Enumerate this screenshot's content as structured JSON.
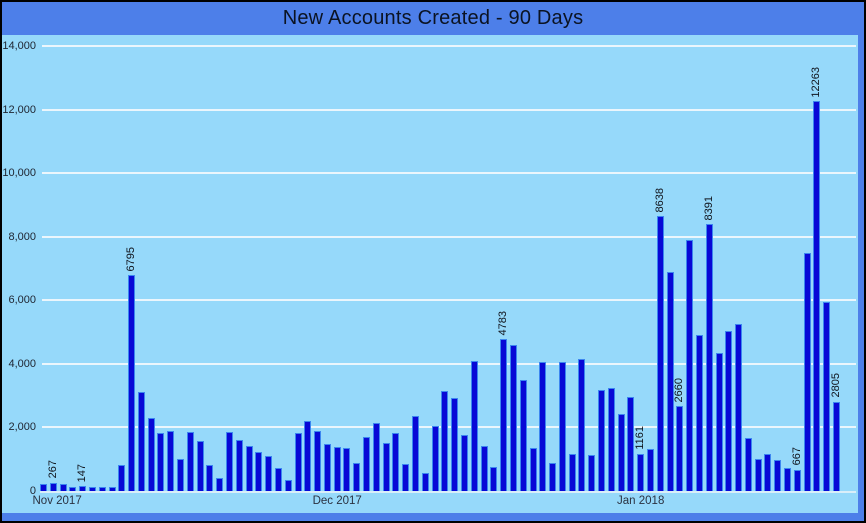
{
  "window": {
    "title": "New Accounts Created - 90 Days"
  },
  "colors": {
    "frame_blue": "#4D7FE9",
    "panel_blue": "#96D9FA",
    "bar_fill": "#0808D6",
    "bar_edge": "#3C86F0",
    "gridline": "#EBF6FC",
    "border": "#000000",
    "text": "#10141C"
  },
  "chart_data": {
    "type": "bar",
    "title": "New Accounts Created - 90 Days",
    "xlabel": "",
    "ylabel": "",
    "ylim": [
      0,
      14000
    ],
    "grid": true,
    "y_ticks": [
      {
        "label": "0",
        "value": 0
      },
      {
        "label": "2,000",
        "value": 2000
      },
      {
        "label": "4,000",
        "value": 4000
      },
      {
        "label": "6,000",
        "value": 6000
      },
      {
        "label": "8,000",
        "value": 8000
      },
      {
        "label": "10,000",
        "value": 10000
      },
      {
        "label": "12,000",
        "value": 12000
      },
      {
        "label": "14,000",
        "value": 14000
      }
    ],
    "x_ticks": [
      {
        "index": 0,
        "label": "Nov 2017",
        "align": "left"
      },
      {
        "index": 30,
        "label": "Dec 2017",
        "align": "center"
      },
      {
        "index": 61,
        "label": "Jan 2018",
        "align": "center"
      }
    ],
    "values": [
      230,
      267,
      210,
      130,
      147,
      135,
      140,
      125,
      830,
      6795,
      3100,
      2300,
      1820,
      1890,
      1000,
      1860,
      1575,
      820,
      400,
      1870,
      1600,
      1420,
      1230,
      1100,
      715,
      345,
      1815,
      2200,
      1890,
      1480,
      1395,
      1345,
      870,
      1690,
      2150,
      1520,
      1815,
      850,
      2360,
      580,
      2050,
      3160,
      2920,
      1765,
      4095,
      1425,
      765,
      4783,
      4600,
      3500,
      1360,
      4060,
      890,
      4070,
      1160,
      4150,
      1135,
      3170,
      3255,
      2415,
      2960,
      1161,
      1330,
      8638,
      6900,
      2660,
      7900,
      4900,
      8391,
      4350,
      5040,
      5250,
      1680,
      1000,
      1150,
      970,
      735,
      667,
      7480,
      12263,
      5950,
      2805
    ],
    "point_labels": {
      "1": "267",
      "4": "147",
      "9": "6795",
      "47": "4783",
      "61": "1161",
      "63": "8638",
      "65": "2660",
      "68": "8391",
      "77": "667",
      "79": "12263",
      "81": "2805"
    }
  }
}
